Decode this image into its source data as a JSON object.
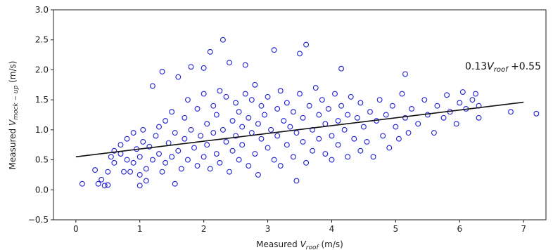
{
  "chart_data": {
    "type": "scatter",
    "title": "",
    "xlabel_main": "Measured ",
    "xlabel_var": "V",
    "xlabel_sub": "roof",
    "xlabel_unit": " (m/s)",
    "ylabel_main": "Measured ",
    "ylabel_var": "V",
    "ylabel_sub": "mock − up",
    "ylabel_unit": " (m/s)",
    "xlim": [
      -0.35,
      7.35
    ],
    "ylim": [
      -0.5,
      3.0
    ],
    "x_ticks": [
      0,
      1,
      2,
      3,
      4,
      5,
      6,
      7
    ],
    "x_tick_labels": [
      "0",
      "1",
      "2",
      "3",
      "4",
      "5",
      "6",
      "7"
    ],
    "y_ticks": [
      -0.5,
      0.0,
      0.5,
      1.0,
      1.5,
      2.0,
      2.5,
      3.0
    ],
    "y_tick_labels": [
      "−0.5",
      "0.0",
      "0.5",
      "1.0",
      "1.5",
      "2.0",
      "2.5",
      "3.0"
    ],
    "grid": false,
    "marker_color": "#1f1fd6",
    "line_color": "#111111",
    "fit": {
      "slope": 0.13,
      "intercept": 0.55,
      "x_range": [
        0,
        7
      ],
      "label_coef": "0.13",
      "label_var": "V",
      "label_sub": "roof",
      "label_const": " +0.55"
    },
    "series": [
      {
        "points": [
          [
            0.1,
            0.1
          ],
          [
            0.3,
            0.33
          ],
          [
            0.35,
            0.1
          ],
          [
            0.4,
            0.17
          ],
          [
            0.45,
            0.07
          ],
          [
            0.5,
            0.08
          ],
          [
            0.5,
            0.3
          ],
          [
            0.55,
            0.55
          ],
          [
            0.6,
            0.45
          ],
          [
            0.6,
            0.65
          ],
          [
            0.7,
            0.6
          ],
          [
            0.7,
            0.75
          ],
          [
            0.75,
            0.3
          ],
          [
            0.8,
            0.85
          ],
          [
            0.8,
            0.5
          ],
          [
            0.85,
            0.3
          ],
          [
            0.9,
            0.95
          ],
          [
            0.9,
            0.45
          ],
          [
            0.95,
            0.68
          ],
          [
            1.0,
            0.07
          ],
          [
            1.0,
            0.25
          ],
          [
            1.0,
            0.55
          ],
          [
            1.05,
            1.0
          ],
          [
            1.05,
            0.8
          ],
          [
            1.1,
            0.35
          ],
          [
            1.1,
            0.15
          ],
          [
            1.15,
            0.72
          ],
          [
            1.2,
            0.5
          ],
          [
            1.2,
            1.73
          ],
          [
            1.25,
            0.9
          ],
          [
            1.3,
            0.6
          ],
          [
            1.3,
            1.05
          ],
          [
            1.35,
            1.97
          ],
          [
            1.35,
            0.3
          ],
          [
            1.4,
            0.45
          ],
          [
            1.4,
            1.15
          ],
          [
            1.45,
            0.78
          ],
          [
            1.5,
            0.55
          ],
          [
            1.5,
            1.3
          ],
          [
            1.55,
            0.1
          ],
          [
            1.55,
            0.95
          ],
          [
            1.6,
            1.88
          ],
          [
            1.6,
            0.65
          ],
          [
            1.65,
            0.35
          ],
          [
            1.7,
            1.2
          ],
          [
            1.7,
            0.85
          ],
          [
            1.75,
            1.5
          ],
          [
            1.75,
            0.5
          ],
          [
            1.8,
            2.05
          ],
          [
            1.8,
            1.0
          ],
          [
            1.85,
            0.7
          ],
          [
            1.9,
            1.35
          ],
          [
            1.9,
            0.4
          ],
          [
            1.95,
            0.9
          ],
          [
            2.0,
            1.6
          ],
          [
            2.0,
            0.55
          ],
          [
            2.0,
            2.03
          ],
          [
            2.05,
            1.1
          ],
          [
            2.05,
            0.75
          ],
          [
            2.1,
            2.3
          ],
          [
            2.1,
            0.35
          ],
          [
            2.15,
            1.4
          ],
          [
            2.15,
            0.95
          ],
          [
            2.2,
            0.6
          ],
          [
            2.2,
            1.25
          ],
          [
            2.25,
            1.65
          ],
          [
            2.25,
            0.45
          ],
          [
            2.3,
            2.5
          ],
          [
            2.3,
            1.0
          ],
          [
            2.35,
            0.8
          ],
          [
            2.35,
            1.55
          ],
          [
            2.4,
            2.12
          ],
          [
            2.4,
            0.3
          ],
          [
            2.45,
            1.15
          ],
          [
            2.45,
            0.65
          ],
          [
            2.5,
            1.45
          ],
          [
            2.5,
            0.9
          ],
          [
            2.55,
            0.5
          ],
          [
            2.55,
            1.3
          ],
          [
            2.6,
            1.05
          ],
          [
            2.6,
            0.75
          ],
          [
            2.65,
            2.08
          ],
          [
            2.65,
            1.6
          ],
          [
            2.7,
            0.4
          ],
          [
            2.7,
            1.2
          ],
          [
            2.75,
            0.95
          ],
          [
            2.75,
            1.5
          ],
          [
            2.8,
            0.6
          ],
          [
            2.8,
            1.75
          ],
          [
            2.85,
            1.1
          ],
          [
            2.85,
            0.25
          ],
          [
            2.9,
            1.4
          ],
          [
            2.9,
            0.85
          ],
          [
            2.95,
            1.25
          ],
          [
            3.0,
            0.7
          ],
          [
            3.0,
            1.55
          ],
          [
            3.05,
            1.0
          ],
          [
            3.1,
            2.33
          ],
          [
            3.1,
            0.5
          ],
          [
            3.15,
            1.35
          ],
          [
            3.15,
            0.9
          ],
          [
            3.2,
            1.65
          ],
          [
            3.2,
            0.4
          ],
          [
            3.25,
            1.15
          ],
          [
            3.3,
            0.75
          ],
          [
            3.3,
            1.45
          ],
          [
            3.35,
            1.05
          ],
          [
            3.4,
            0.55
          ],
          [
            3.4,
            1.3
          ],
          [
            3.45,
            0.15
          ],
          [
            3.45,
            0.95
          ],
          [
            3.5,
            2.27
          ],
          [
            3.5,
            1.6
          ],
          [
            3.55,
            0.8
          ],
          [
            3.55,
            1.2
          ],
          [
            3.6,
            2.42
          ],
          [
            3.6,
            0.45
          ],
          [
            3.65,
            1.4
          ],
          [
            3.7,
            1.0
          ],
          [
            3.7,
            0.65
          ],
          [
            3.75,
            1.7
          ],
          [
            3.8,
            1.25
          ],
          [
            3.8,
            0.85
          ],
          [
            3.85,
            1.5
          ],
          [
            3.9,
            0.6
          ],
          [
            3.9,
            1.1
          ],
          [
            3.95,
            1.35
          ],
          [
            4.0,
            0.9
          ],
          [
            4.0,
            0.5
          ],
          [
            4.05,
            1.6
          ],
          [
            4.1,
            1.15
          ],
          [
            4.1,
            0.75
          ],
          [
            4.15,
            2.02
          ],
          [
            4.15,
            1.4
          ],
          [
            4.2,
            1.0
          ],
          [
            4.25,
            0.55
          ],
          [
            4.25,
            1.25
          ],
          [
            4.3,
            1.55
          ],
          [
            4.35,
            0.85
          ],
          [
            4.4,
            1.2
          ],
          [
            4.45,
            0.65
          ],
          [
            4.45,
            1.45
          ],
          [
            4.5,
            1.05
          ],
          [
            4.55,
            0.8
          ],
          [
            4.6,
            1.3
          ],
          [
            4.65,
            0.55
          ],
          [
            4.7,
            1.15
          ],
          [
            4.75,
            1.5
          ],
          [
            4.8,
            0.9
          ],
          [
            4.85,
            1.25
          ],
          [
            4.9,
            0.7
          ],
          [
            4.95,
            1.4
          ],
          [
            5.0,
            1.05
          ],
          [
            5.05,
            0.85
          ],
          [
            5.1,
            1.6
          ],
          [
            5.15,
            1.93
          ],
          [
            5.15,
            1.2
          ],
          [
            5.2,
            0.95
          ],
          [
            5.25,
            1.35
          ],
          [
            5.35,
            1.1
          ],
          [
            5.45,
            1.5
          ],
          [
            5.5,
            1.25
          ],
          [
            5.6,
            0.95
          ],
          [
            5.65,
            1.4
          ],
          [
            5.75,
            1.2
          ],
          [
            5.8,
            1.58
          ],
          [
            5.85,
            1.3
          ],
          [
            5.95,
            1.1
          ],
          [
            6.0,
            1.45
          ],
          [
            6.05,
            1.63
          ],
          [
            6.1,
            1.35
          ],
          [
            6.2,
            1.5
          ],
          [
            6.25,
            1.6
          ],
          [
            6.3,
            1.2
          ],
          [
            6.3,
            1.4
          ],
          [
            6.8,
            1.3
          ],
          [
            7.2,
            1.27
          ]
        ]
      }
    ]
  }
}
